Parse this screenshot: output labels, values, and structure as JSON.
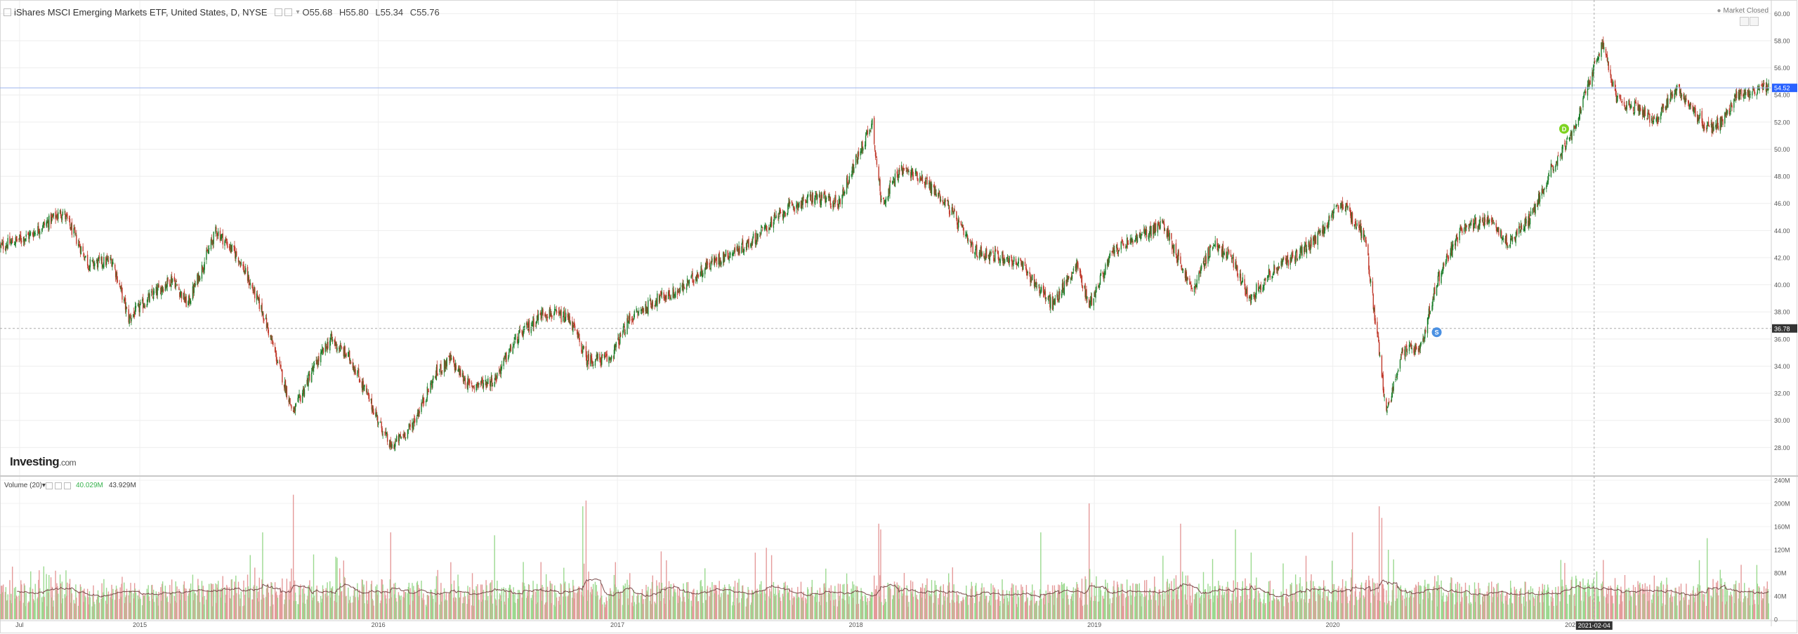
{
  "header": {
    "title": "iShares MSCI Emerging Markets ETF, United States, D, NYSE",
    "open": "O55.68",
    "high": "H55.80",
    "low": "L55.34",
    "close": "C55.76"
  },
  "status": {
    "market": "Market Closed"
  },
  "volume_header": {
    "label": "Volume (20)",
    "value1": "40.029M",
    "value2": "43.929M"
  },
  "logo": {
    "name": "Investing",
    "suffix": ".com"
  },
  "colors": {
    "up": "#1b7e2a",
    "down": "#c0392b",
    "vol_up": "#9bd98f",
    "vol_down": "#e59a9a",
    "last_price": "#2962ff"
  },
  "chart_data": [
    {
      "type": "candlestick",
      "title": "",
      "price_axis": {
        "min": 26,
        "max": 61,
        "ticks": [
          "28.00",
          "30.00",
          "32.00",
          "34.00",
          "36.00",
          "38.00",
          "40.00",
          "42.00",
          "44.00",
          "46.00",
          "48.00",
          "50.00",
          "52.00",
          "54.00",
          "56.00",
          "58.00",
          "60.00"
        ]
      },
      "last_price_label": "54.52",
      "last_price_value": 54.52,
      "crosshair_price_label": "36.78",
      "crosshair_price_value": 36.78,
      "crosshair_date_label": "2021-02-04",
      "x_axis": {
        "start": "2014-06-01",
        "end": "2021-10-31",
        "ticks": [
          {
            "label": "Jul",
            "date": "2014-07-01"
          },
          {
            "label": "2015",
            "date": "2015-01-01"
          },
          {
            "label": "2016",
            "date": "2016-01-01"
          },
          {
            "label": "2017",
            "date": "2017-01-01"
          },
          {
            "label": "2018",
            "date": "2018-01-01"
          },
          {
            "label": "2019",
            "date": "2019-01-01"
          },
          {
            "label": "2020",
            "date": "2020-01-01"
          },
          {
            "label": "2021",
            "date": "2021-01-01"
          }
        ]
      },
      "anchors": [
        [
          "2014-06-01",
          42.8
        ],
        [
          "2014-07-15",
          43.6
        ],
        [
          "2014-09-05",
          45.4
        ],
        [
          "2014-10-15",
          41.5
        ],
        [
          "2014-11-20",
          41.8
        ],
        [
          "2014-12-15",
          37.5
        ],
        [
          "2015-01-15",
          39.0
        ],
        [
          "2015-02-20",
          40.5
        ],
        [
          "2015-03-15",
          38.5
        ],
        [
          "2015-04-28",
          44.0
        ],
        [
          "2015-06-01",
          42.0
        ],
        [
          "2015-07-08",
          38.0
        ],
        [
          "2015-08-24",
          30.5
        ],
        [
          "2015-09-20",
          33.5
        ],
        [
          "2015-10-20",
          36.0
        ],
        [
          "2015-11-20",
          34.5
        ],
        [
          "2016-01-20",
          28.0
        ],
        [
          "2016-02-20",
          29.5
        ],
        [
          "2016-03-30",
          33.5
        ],
        [
          "2016-04-20",
          34.5
        ],
        [
          "2016-05-20",
          32.5
        ],
        [
          "2016-06-27",
          33.0
        ],
        [
          "2016-07-30",
          36.0
        ],
        [
          "2016-09-10",
          38.0
        ],
        [
          "2016-10-20",
          37.5
        ],
        [
          "2016-11-15",
          34.5
        ],
        [
          "2016-12-20",
          34.5
        ],
        [
          "2017-01-20",
          37.5
        ],
        [
          "2017-03-05",
          39.0
        ],
        [
          "2017-04-05",
          39.5
        ],
        [
          "2017-05-20",
          41.5
        ],
        [
          "2017-07-20",
          43.0
        ],
        [
          "2017-09-15",
          45.5
        ],
        [
          "2017-10-30",
          46.5
        ],
        [
          "2017-12-05",
          46.0
        ],
        [
          "2018-01-26",
          52.0
        ],
        [
          "2018-02-09",
          46.0
        ],
        [
          "2018-03-10",
          48.5
        ],
        [
          "2018-04-10",
          48.0
        ],
        [
          "2018-05-20",
          46.0
        ],
        [
          "2018-06-30",
          42.5
        ],
        [
          "2018-08-15",
          42.0
        ],
        [
          "2018-09-10",
          41.5
        ],
        [
          "2018-10-29",
          38.5
        ],
        [
          "2018-12-05",
          41.5
        ],
        [
          "2018-12-24",
          38.5
        ],
        [
          "2019-01-30",
          42.5
        ],
        [
          "2019-03-10",
          43.5
        ],
        [
          "2019-04-17",
          44.5
        ],
        [
          "2019-05-31",
          39.5
        ],
        [
          "2019-06-30",
          43.0
        ],
        [
          "2019-07-30",
          42.0
        ],
        [
          "2019-08-26",
          39.0
        ],
        [
          "2019-09-30",
          41.0
        ],
        [
          "2019-10-30",
          42.0
        ],
        [
          "2019-11-30",
          43.0
        ],
        [
          "2020-01-15",
          46.0
        ],
        [
          "2020-02-20",
          43.5
        ],
        [
          "2020-03-23",
          30.5
        ],
        [
          "2020-04-15",
          35.0
        ],
        [
          "2020-05-15",
          35.5
        ],
        [
          "2020-06-10",
          40.5
        ],
        [
          "2020-07-15",
          44.0
        ],
        [
          "2020-08-30",
          45.0
        ],
        [
          "2020-09-25",
          43.0
        ],
        [
          "2020-10-30",
          45.0
        ],
        [
          "2020-11-30",
          48.5
        ],
        [
          "2021-01-05",
          51.5
        ],
        [
          "2021-02-17",
          58.0
        ],
        [
          "2021-03-10",
          53.5
        ],
        [
          "2021-04-15",
          53.0
        ],
        [
          "2021-05-10",
          52.0
        ],
        [
          "2021-06-10",
          54.5
        ],
        [
          "2021-07-27",
          51.5
        ],
        [
          "2021-08-20",
          52.0
        ],
        [
          "2021-09-10",
          54.0
        ],
        [
          "2021-10-31",
          54.5
        ]
      ],
      "events": [
        {
          "label": "D",
          "date": "2020-12-20",
          "value": 51.5,
          "color": "#7ed321"
        },
        {
          "label": "S",
          "date": "2020-06-08",
          "value": 36.5,
          "color": "#4a90e2"
        }
      ]
    },
    {
      "type": "bar",
      "title": "Volume (20)",
      "y_axis": {
        "min": 0,
        "max": 240,
        "unit": "M",
        "ticks": [
          "0",
          "40M",
          "80M",
          "120M",
          "160M",
          "200M",
          "240M"
        ]
      },
      "typical_volume_M": 45,
      "spikes": [
        {
          "date": "2015-08-24",
          "value": 215
        },
        {
          "date": "2015-07-08",
          "value": 150
        },
        {
          "date": "2016-01-20",
          "value": 150
        },
        {
          "date": "2016-06-27",
          "value": 145
        },
        {
          "date": "2016-11-09",
          "value": 195
        },
        {
          "date": "2016-11-14",
          "value": 205
        },
        {
          "date": "2018-02-05",
          "value": 165
        },
        {
          "date": "2018-02-08",
          "value": 155
        },
        {
          "date": "2018-10-11",
          "value": 150
        },
        {
          "date": "2018-12-24",
          "value": 200
        },
        {
          "date": "2019-05-13",
          "value": 165
        },
        {
          "date": "2019-08-05",
          "value": 155
        },
        {
          "date": "2020-03-12",
          "value": 195
        },
        {
          "date": "2020-03-16",
          "value": 175
        },
        {
          "date": "2020-01-31",
          "value": 150
        },
        {
          "date": "2021-07-27",
          "value": 140
        }
      ]
    }
  ]
}
